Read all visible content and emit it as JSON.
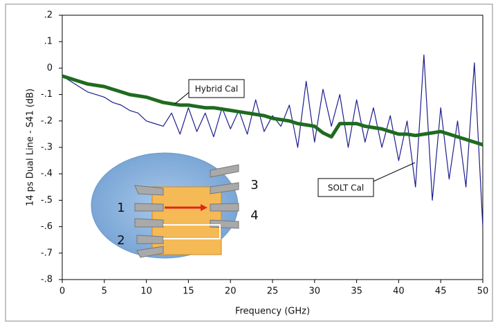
{
  "chart_data": {
    "type": "line",
    "xlabel": "Frequency (GHz)",
    "ylabel": "14 ps Dual Line - S41 (dB)",
    "x": [
      0,
      1,
      2,
      3,
      4,
      5,
      6,
      7,
      8,
      9,
      10,
      11,
      12,
      13,
      14,
      15,
      16,
      17,
      18,
      19,
      20,
      21,
      22,
      23,
      24,
      25,
      26,
      27,
      28,
      29,
      30,
      31,
      32,
      33,
      34,
      35,
      36,
      37,
      38,
      39,
      40,
      41,
      42,
      43,
      44,
      45,
      46,
      47,
      48,
      49,
      50
    ],
    "series": [
      {
        "name": "SOLT Cal",
        "color": "#1c1c8e",
        "values": [
          -0.03,
          -0.05,
          -0.07,
          -0.09,
          -0.1,
          -0.11,
          -0.13,
          -0.14,
          -0.16,
          -0.17,
          -0.2,
          -0.21,
          -0.22,
          -0.17,
          -0.25,
          -0.15,
          -0.24,
          -0.17,
          -0.26,
          -0.15,
          -0.23,
          -0.16,
          -0.25,
          -0.12,
          -0.24,
          -0.18,
          -0.22,
          -0.14,
          -0.3,
          -0.05,
          -0.28,
          -0.08,
          -0.22,
          -0.1,
          -0.3,
          -0.12,
          -0.28,
          -0.15,
          -0.3,
          -0.18,
          -0.35,
          -0.2,
          -0.45,
          0.05,
          -0.5,
          -0.15,
          -0.42,
          -0.2,
          -0.45,
          0.02,
          -0.6
        ]
      },
      {
        "name": "Hybrid Cal",
        "color": "#1f6b1f",
        "values": [
          -0.03,
          -0.04,
          -0.05,
          -0.06,
          -0.065,
          -0.07,
          -0.08,
          -0.09,
          -0.1,
          -0.105,
          -0.11,
          -0.12,
          -0.13,
          -0.135,
          -0.14,
          -0.14,
          -0.145,
          -0.15,
          -0.15,
          -0.155,
          -0.16,
          -0.165,
          -0.17,
          -0.175,
          -0.18,
          -0.19,
          -0.195,
          -0.2,
          -0.21,
          -0.215,
          -0.22,
          -0.245,
          -0.26,
          -0.21,
          -0.21,
          -0.21,
          -0.22,
          -0.225,
          -0.23,
          -0.24,
          -0.25,
          -0.25,
          -0.255,
          -0.25,
          -0.245,
          -0.24,
          -0.25,
          -0.26,
          -0.27,
          -0.28,
          -0.29
        ]
      }
    ],
    "xlim": [
      0,
      50
    ],
    "xticks": [
      0,
      5,
      10,
      15,
      20,
      25,
      30,
      35,
      40,
      45,
      50
    ],
    "ylim": [
      -0.8,
      0.2
    ],
    "yticks": [
      {
        "value": 0.2,
        "label": ".2"
      },
      {
        "value": 0.1,
        "label": ".1"
      },
      0,
      {
        "value": -0.1,
        "label": "-.1"
      },
      {
        "value": -0.2,
        "label": "-.2"
      },
      {
        "value": -0.3,
        "label": "-.3"
      },
      {
        "value": -0.4,
        "label": "-.4"
      },
      {
        "value": -0.5,
        "label": "-.5"
      },
      {
        "value": -0.6,
        "label": "-.6"
      },
      {
        "value": -0.7,
        "label": "-.7"
      },
      {
        "value": -0.8,
        "label": "-.8"
      }
    ],
    "grid": false,
    "inset_labels": [
      "1",
      "2",
      "3",
      "4"
    ]
  }
}
